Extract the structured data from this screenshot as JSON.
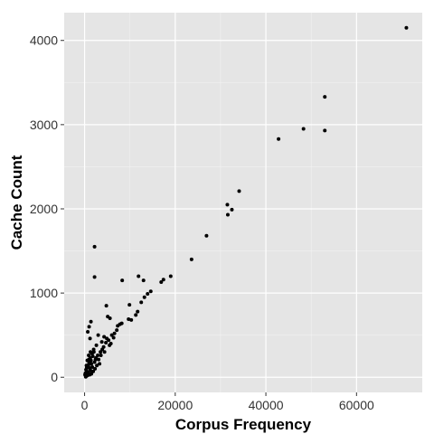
{
  "chart_data": {
    "type": "scatter",
    "xlabel": "Corpus Frequency",
    "ylabel": "Cache Count",
    "xlim": [
      -4500,
      74500
    ],
    "ylim": [
      -180,
      4330
    ],
    "x_ticks": [
      0,
      20000,
      40000,
      60000
    ],
    "x_tick_labels": [
      "0",
      "20000",
      "40000",
      "60000"
    ],
    "y_ticks": [
      0,
      1000,
      2000,
      3000,
      4000
    ],
    "y_tick_labels": [
      "0",
      "1000",
      "2000",
      "3000",
      "4000"
    ],
    "grid": true,
    "panel_color": "#e5e5e5",
    "grid_color": "#ffffff",
    "point_color": "#000000",
    "points": [
      [
        71000,
        4150
      ],
      [
        53000,
        3330
      ],
      [
        48300,
        2950
      ],
      [
        53000,
        2930
      ],
      [
        42800,
        2830
      ],
      [
        34100,
        2210
      ],
      [
        31500,
        2050
      ],
      [
        32500,
        1990
      ],
      [
        31600,
        1930
      ],
      [
        26900,
        1680
      ],
      [
        23600,
        1400
      ],
      [
        2200,
        1550
      ],
      [
        2200,
        1190
      ],
      [
        8300,
        1150
      ],
      [
        11900,
        1200
      ],
      [
        13000,
        1150
      ],
      [
        19000,
        1200
      ],
      [
        17400,
        1160
      ],
      [
        16900,
        1130
      ],
      [
        14600,
        1020
      ],
      [
        13900,
        990
      ],
      [
        13200,
        950
      ],
      [
        9900,
        860
      ],
      [
        4800,
        850
      ],
      [
        12500,
        890
      ],
      [
        11700,
        780
      ],
      [
        11300,
        740
      ],
      [
        10300,
        680
      ],
      [
        9700,
        690
      ],
      [
        7800,
        630
      ],
      [
        5100,
        720
      ],
      [
        5600,
        700
      ],
      [
        7300,
        610
      ],
      [
        8200,
        640
      ],
      [
        1400,
        660
      ],
      [
        1000,
        600
      ],
      [
        700,
        540
      ],
      [
        1200,
        460
      ],
      [
        3000,
        500
      ],
      [
        6400,
        470
      ],
      [
        4900,
        460
      ],
      [
        3800,
        420
      ],
      [
        4300,
        480
      ],
      [
        5800,
        400
      ],
      [
        2600,
        380
      ],
      [
        2000,
        330
      ],
      [
        1300,
        300
      ],
      [
        900,
        260
      ],
      [
        1800,
        250
      ],
      [
        2500,
        230
      ],
      [
        3100,
        210
      ],
      [
        600,
        200
      ],
      [
        1000,
        180
      ],
      [
        1500,
        160
      ],
      [
        400,
        140
      ],
      [
        700,
        120
      ],
      [
        1100,
        110
      ],
      [
        300,
        90
      ],
      [
        500,
        70
      ],
      [
        200,
        50
      ],
      [
        100,
        30
      ],
      [
        800,
        60
      ],
      [
        1300,
        80
      ],
      [
        1700,
        120
      ],
      [
        2200,
        180
      ],
      [
        2900,
        260
      ],
      [
        3500,
        300
      ],
      [
        4200,
        360
      ],
      [
        4700,
        410
      ],
      [
        5300,
        440
      ],
      [
        6000,
        500
      ],
      [
        6600,
        520
      ],
      [
        7100,
        560
      ],
      [
        3300,
        160
      ],
      [
        2700,
        140
      ],
      [
        2300,
        100
      ],
      [
        1900,
        70
      ],
      [
        1500,
        40
      ],
      [
        1100,
        30
      ],
      [
        600,
        20
      ],
      [
        300,
        10
      ],
      [
        150,
        40
      ],
      [
        450,
        110
      ],
      [
        950,
        210
      ],
      [
        1250,
        230
      ],
      [
        1650,
        280
      ],
      [
        2050,
        300
      ],
      [
        3900,
        330
      ],
      [
        4400,
        300
      ],
      [
        5500,
        380
      ],
      [
        250,
        5
      ],
      [
        900,
        150
      ],
      [
        1400,
        200
      ],
      [
        2400,
        210
      ],
      [
        3600,
        260
      ]
    ]
  }
}
